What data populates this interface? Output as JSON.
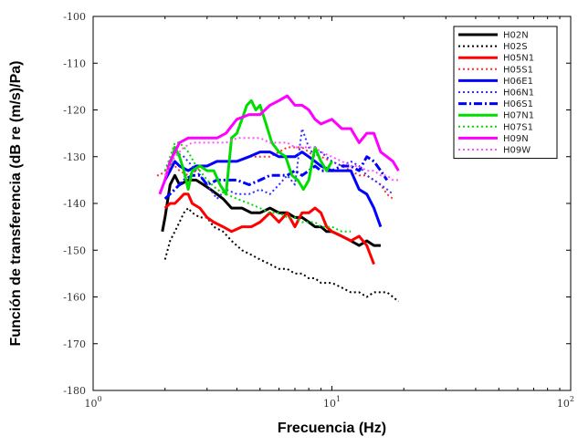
{
  "chart_data": {
    "type": "line",
    "title": "",
    "xlabel": "Frecuencia (Hz)",
    "ylabel": "Función de transferencia (dB re (m/s)/Pa)",
    "x_scale": "log",
    "xlim": [
      1,
      100
    ],
    "ylim": [
      -180,
      -100
    ],
    "x_ticks": [
      {
        "value": 1,
        "base": "10",
        "exp": "0"
      },
      {
        "value": 10,
        "base": "10",
        "exp": "1"
      },
      {
        "value": 100,
        "base": "10",
        "exp": "2"
      }
    ],
    "y_ticks": [
      {
        "value": -100,
        "label": "-100"
      },
      {
        "value": -110,
        "label": "-110"
      },
      {
        "value": -120,
        "label": "-120"
      },
      {
        "value": -130,
        "label": "-130"
      },
      {
        "value": -140,
        "label": "-140"
      },
      {
        "value": -150,
        "label": "-150"
      },
      {
        "value": -160,
        "label": "-160"
      },
      {
        "value": -170,
        "label": "-170"
      },
      {
        "value": -180,
        "label": "-180"
      }
    ],
    "grid": false,
    "legend_position": "top-right",
    "series": [
      {
        "name": "H02N",
        "color": "#000000",
        "dash": "solid",
        "width": 3,
        "x": [
          1.95,
          2.0,
          2.1,
          2.2,
          2.3,
          2.5,
          2.7,
          2.9,
          3.1,
          3.3,
          3.5,
          3.8,
          4.2,
          4.6,
          5.0,
          5.5,
          6.0,
          6.5,
          7.0,
          7.5,
          8.0,
          8.5,
          9.0,
          9.5,
          10,
          11,
          12,
          13,
          14,
          15,
          16
        ],
        "y": [
          -146,
          -143,
          -136,
          -134,
          -136,
          -135,
          -135,
          -136,
          -137,
          -138,
          -139,
          -141,
          -141,
          -142,
          -142,
          -141,
          -142,
          -142,
          -143,
          -143,
          -144,
          -145,
          -145,
          -146,
          -146,
          -147,
          -148,
          -149,
          -148,
          -149,
          -149
        ]
      },
      {
        "name": "H02S",
        "color": "#000000",
        "dash": "dot",
        "width": 2,
        "x": [
          2.0,
          2.1,
          2.2,
          2.3,
          2.4,
          2.5,
          2.6,
          2.8,
          3.0,
          3.2,
          3.5,
          3.8,
          4.2,
          4.6,
          5.0,
          5.5,
          6.0,
          6.5,
          7.0,
          7.5,
          8.0,
          8.5,
          9.0,
          10,
          11,
          12,
          13,
          14,
          15,
          16,
          17,
          18,
          19
        ],
        "y": [
          -152,
          -148,
          -146,
          -144,
          -142,
          -141,
          -142,
          -143,
          -143,
          -145,
          -146,
          -148,
          -150,
          -151,
          -152,
          -153,
          -154,
          -154,
          -155,
          -155,
          -156,
          -156,
          -157,
          -157,
          -158,
          -159,
          -159,
          -160,
          -159,
          -159,
          -159,
          -160,
          -161
        ]
      },
      {
        "name": "H05N1",
        "color": "#ff0000",
        "dash": "solid",
        "width": 3,
        "x": [
          2.0,
          2.1,
          2.2,
          2.3,
          2.4,
          2.5,
          2.6,
          2.8,
          3.0,
          3.2,
          3.5,
          3.8,
          4.2,
          4.6,
          5.0,
          5.5,
          6.0,
          6.5,
          7.0,
          7.5,
          8.0,
          8.5,
          9.0,
          9.5,
          10,
          11,
          12,
          13,
          14,
          15
        ],
        "y": [
          -141,
          -140,
          -140,
          -139,
          -138,
          -138,
          -140,
          -141,
          -143,
          -144,
          -145,
          -146,
          -145,
          -145,
          -144,
          -142,
          -144,
          -142,
          -145,
          -142,
          -142,
          -141,
          -142,
          -145,
          -146,
          -147,
          -148,
          -147,
          -149,
          -153
        ]
      },
      {
        "name": "H05S1",
        "color": "#ff3030",
        "dash": "dot",
        "width": 2,
        "x": [
          1.85,
          1.9,
          2.0,
          2.1,
          2.2,
          2.3,
          2.5,
          2.7,
          3.0,
          3.3,
          3.6,
          4.0,
          4.5,
          5.0,
          5.5,
          6.0,
          6.5,
          7.0,
          7.5,
          8.0,
          8.5,
          9.0,
          10,
          11,
          12,
          13,
          14,
          15,
          16,
          17,
          18
        ],
        "y": [
          -134,
          -134,
          -133,
          -131,
          -132,
          -133,
          -134,
          -133,
          -132,
          -131,
          -131,
          -131,
          -130,
          -130,
          -130,
          -129,
          -128,
          -128,
          -128,
          -129,
          -130,
          -130,
          -131,
          -132,
          -133,
          -134,
          -134,
          -135,
          -136,
          -138,
          -139
        ]
      },
      {
        "name": "H06E1",
        "color": "#0000ff",
        "dash": "solid",
        "width": 3,
        "x": [
          2.0,
          2.1,
          2.2,
          2.3,
          2.5,
          2.7,
          3.0,
          3.3,
          3.6,
          4.0,
          4.5,
          5.0,
          5.5,
          6.0,
          6.5,
          7.0,
          7.5,
          8.0,
          8.5,
          9.0,
          10,
          11,
          12,
          13,
          14,
          15,
          16
        ],
        "y": [
          -135,
          -133,
          -131,
          -132,
          -133,
          -132,
          -132,
          -131,
          -131,
          -131,
          -130,
          -129,
          -129,
          -130,
          -130,
          -130,
          -129,
          -130,
          -131,
          -132,
          -133,
          -133,
          -133,
          -137,
          -138,
          -141,
          -145
        ]
      },
      {
        "name": "H06N1",
        "color": "#3030ff",
        "dash": "dot",
        "width": 2,
        "x": [
          2.2,
          2.4,
          2.6,
          2.8,
          3.0,
          3.3,
          3.6,
          4.0,
          4.5,
          5.0,
          5.5,
          6.0,
          6.5,
          7.0,
          7.5,
          8.0,
          8.5,
          9.0,
          10,
          11,
          12,
          13,
          14,
          15,
          16,
          17,
          18
        ],
        "y": [
          -129,
          -130,
          -132,
          -134,
          -136,
          -139,
          -137,
          -138,
          -138,
          -137,
          -138,
          -136,
          -134,
          -136,
          -124,
          -128,
          -130,
          -129,
          -131,
          -132,
          -131,
          -132,
          -134,
          -135,
          -136,
          -137,
          -138
        ]
      },
      {
        "name": "H06S1",
        "color": "#0000ff",
        "dash": "dashdot",
        "width": 3,
        "x": [
          2.0,
          2.2,
          2.4,
          2.6,
          2.8,
          3.0,
          3.3,
          3.6,
          4.0,
          4.5,
          5.0,
          5.5,
          6.0,
          6.5,
          7.0,
          7.5,
          8.0,
          8.5,
          9.0,
          10,
          11,
          12,
          13,
          14,
          15,
          16,
          17
        ],
        "y": [
          -139,
          -137,
          -135,
          -134,
          -134,
          -136,
          -135,
          -135,
          -135,
          -136,
          -135,
          -134,
          -134,
          -134,
          -133,
          -134,
          -133,
          -132,
          -133,
          -133,
          -132,
          -132,
          -133,
          -130,
          -131,
          -133,
          -135
        ]
      },
      {
        "name": "H07N1",
        "color": "#00dd00",
        "dash": "solid",
        "width": 3,
        "x": [
          2.1,
          2.2,
          2.3,
          2.4,
          2.5,
          2.6,
          2.8,
          3.0,
          3.2,
          3.4,
          3.6,
          3.8,
          4.0,
          4.2,
          4.4,
          4.6,
          4.8,
          5.0,
          5.3,
          5.6,
          6.0,
          6.4,
          6.8,
          7.2,
          7.6,
          8.0,
          8.5,
          9.0,
          9.5,
          10
        ],
        "y": [
          -132,
          -128,
          -130,
          -133,
          -137,
          -133,
          -132,
          -133,
          -133,
          -136,
          -138,
          -126,
          -125,
          -122,
          -119,
          -118,
          -120,
          -119,
          -123,
          -127,
          -129,
          -130,
          -134,
          -135,
          -137,
          -135,
          -128,
          -131,
          -133,
          -131
        ]
      },
      {
        "name": "H07S1",
        "color": "#00dd00",
        "dash": "dot",
        "width": 2,
        "x": [
          2.0,
          2.1,
          2.2,
          2.3,
          2.5,
          2.7,
          3.0,
          3.3,
          3.6,
          4.0,
          4.5,
          5.0,
          5.5,
          6.0,
          6.5,
          7.0,
          7.5,
          8.0,
          8.5,
          9.0,
          10,
          11,
          12
        ],
        "y": [
          -133,
          -130,
          -127,
          -127,
          -129,
          -132,
          -135,
          -137,
          -138,
          -139,
          -140,
          -141,
          -142,
          -142,
          -143,
          -143,
          -144,
          -144,
          -144,
          -145,
          -145,
          -146,
          -146
        ]
      },
      {
        "name": "H09N",
        "color": "#ff00ff",
        "dash": "solid",
        "width": 3,
        "x": [
          1.9,
          2.0,
          2.1,
          2.2,
          2.3,
          2.5,
          2.7,
          3.0,
          3.3,
          3.6,
          4.0,
          4.5,
          5.0,
          5.5,
          6.0,
          6.5,
          7.0,
          7.5,
          8.0,
          8.5,
          9.0,
          10,
          11,
          12,
          13,
          14,
          15,
          16,
          17,
          18,
          19
        ],
        "y": [
          -138,
          -135,
          -131,
          -129,
          -127,
          -126,
          -126,
          -126,
          -126,
          -125,
          -122,
          -121,
          -121,
          -119,
          -118,
          -117,
          -119,
          -119,
          -120,
          -122,
          -123,
          -122,
          -124,
          -124,
          -127,
          -125,
          -125,
          -129,
          -130,
          -131,
          -133
        ]
      },
      {
        "name": "H09W",
        "color": "#ff55ff",
        "dash": "dot",
        "width": 2,
        "x": [
          2.0,
          2.1,
          2.2,
          2.4,
          2.6,
          2.8,
          3.0,
          3.3,
          3.6,
          4.0,
          4.5,
          5.0,
          5.5,
          6.0,
          6.5,
          7.0,
          7.5,
          8.0,
          8.5,
          9.0,
          10,
          11,
          12,
          13,
          14,
          15,
          16,
          17,
          18,
          19
        ],
        "y": [
          -134,
          -132,
          -130,
          -128,
          -127,
          -127,
          -127,
          -127,
          -127,
          -126,
          -126,
          -126,
          -127,
          -127,
          -127,
          -128,
          -128,
          -128,
          -128,
          -129,
          -130,
          -131,
          -132,
          -132,
          -133,
          -133,
          -134,
          -134,
          -135,
          -135
        ]
      }
    ]
  }
}
